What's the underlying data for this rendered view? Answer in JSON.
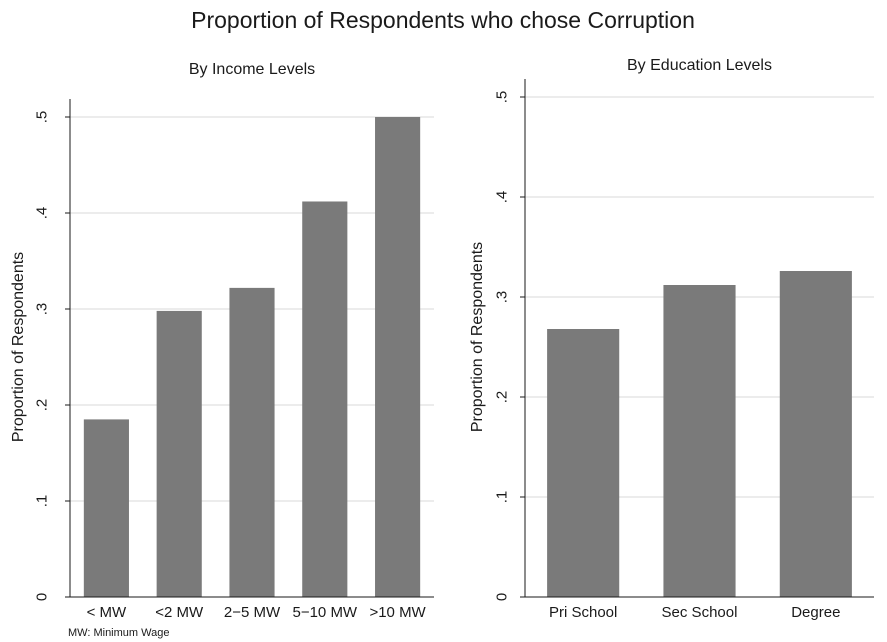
{
  "figure": {
    "title": "Proportion of Respondents who chose Corruption",
    "note": "MW: Minimum Wage"
  },
  "colors": {
    "bar": "#7a7a7a",
    "grid": "#d9d9d9",
    "axis": "#1a1a1a",
    "background": "#ffffff"
  },
  "chart_data": [
    {
      "type": "bar",
      "title": "By Income Levels",
      "xlabel": "",
      "ylabel": "Proportion of Respondents",
      "categories": [
        "< MW",
        "<2 MW",
        "2−5 MW",
        "5−10 MW",
        ">10 MW"
      ],
      "values": [
        0.185,
        0.298,
        0.322,
        0.412,
        0.5
      ],
      "ylim": [
        0,
        0.5
      ],
      "yticks": [
        0,
        0.1,
        0.2,
        0.3,
        0.4,
        0.5
      ],
      "ytick_labels": [
        "0",
        ".1",
        ".2",
        ".3",
        ".4",
        ".5"
      ],
      "grid": true
    },
    {
      "type": "bar",
      "title": "By Education Levels",
      "xlabel": "",
      "ylabel": "Proportion of Respondents",
      "categories": [
        "Pri School",
        "Sec School",
        "Degree"
      ],
      "values": [
        0.268,
        0.312,
        0.326
      ],
      "ylim": [
        0,
        0.5
      ],
      "yticks": [
        0,
        0.1,
        0.2,
        0.3,
        0.4,
        0.5
      ],
      "ytick_labels": [
        "0",
        ".1",
        ".2",
        ".3",
        ".4",
        ".5"
      ],
      "grid": true
    }
  ]
}
